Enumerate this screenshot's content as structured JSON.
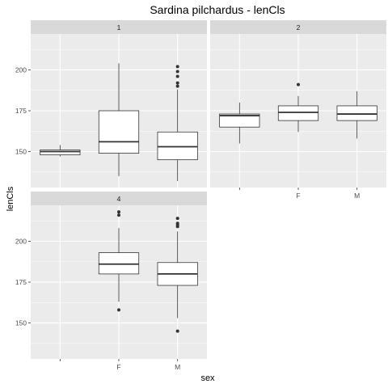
{
  "chart_data": {
    "type": "boxplot",
    "title": "Sardina pilchardus - lenCls",
    "xlabel": "sex",
    "ylabel": "lenCls",
    "categories": [
      "",
      "F",
      "M"
    ],
    "yticks": [
      150,
      175,
      200
    ],
    "ylim": [
      128,
      222
    ],
    "grid": true,
    "colors": {
      "panel": "#ebebeb",
      "strip": "#d9d9d9",
      "grid": "#ffffff",
      "box_fill": "#ffffff",
      "box_line": "#333333"
    },
    "facets": [
      {
        "label": "1",
        "boxes": [
          {
            "sex": "",
            "min": 147,
            "q1": 148,
            "median": 150,
            "q3": 151,
            "max": 154,
            "outliers": []
          },
          {
            "sex": "F",
            "min": 135,
            "q1": 149,
            "median": 156,
            "q3": 175,
            "max": 204,
            "outliers": []
          },
          {
            "sex": "M",
            "min": 132,
            "q1": 145,
            "median": 153,
            "q3": 162,
            "max": 188,
            "outliers": [
              190,
              192,
              196,
              199,
              202
            ]
          }
        ]
      },
      {
        "label": "2",
        "boxes": [
          {
            "sex": "",
            "min": 155,
            "q1": 165,
            "median": 172,
            "q3": 173,
            "max": 180,
            "outliers": []
          },
          {
            "sex": "F",
            "min": 162,
            "q1": 169,
            "median": 174,
            "q3": 178,
            "max": 184,
            "outliers": [
              191
            ]
          },
          {
            "sex": "M",
            "min": 158,
            "q1": 169,
            "median": 173,
            "q3": 178,
            "max": 187,
            "outliers": []
          }
        ]
      },
      {
        "label": "4",
        "boxes": [
          {
            "sex": "F",
            "min": 163,
            "q1": 180,
            "median": 186,
            "q3": 193,
            "max": 208,
            "outliers": [
              158,
              216,
              218
            ]
          },
          {
            "sex": "M",
            "min": 153,
            "q1": 173,
            "median": 180,
            "q3": 187,
            "max": 206,
            "outliers": [
              145,
              209,
              210,
              211,
              214
            ]
          }
        ]
      }
    ]
  }
}
